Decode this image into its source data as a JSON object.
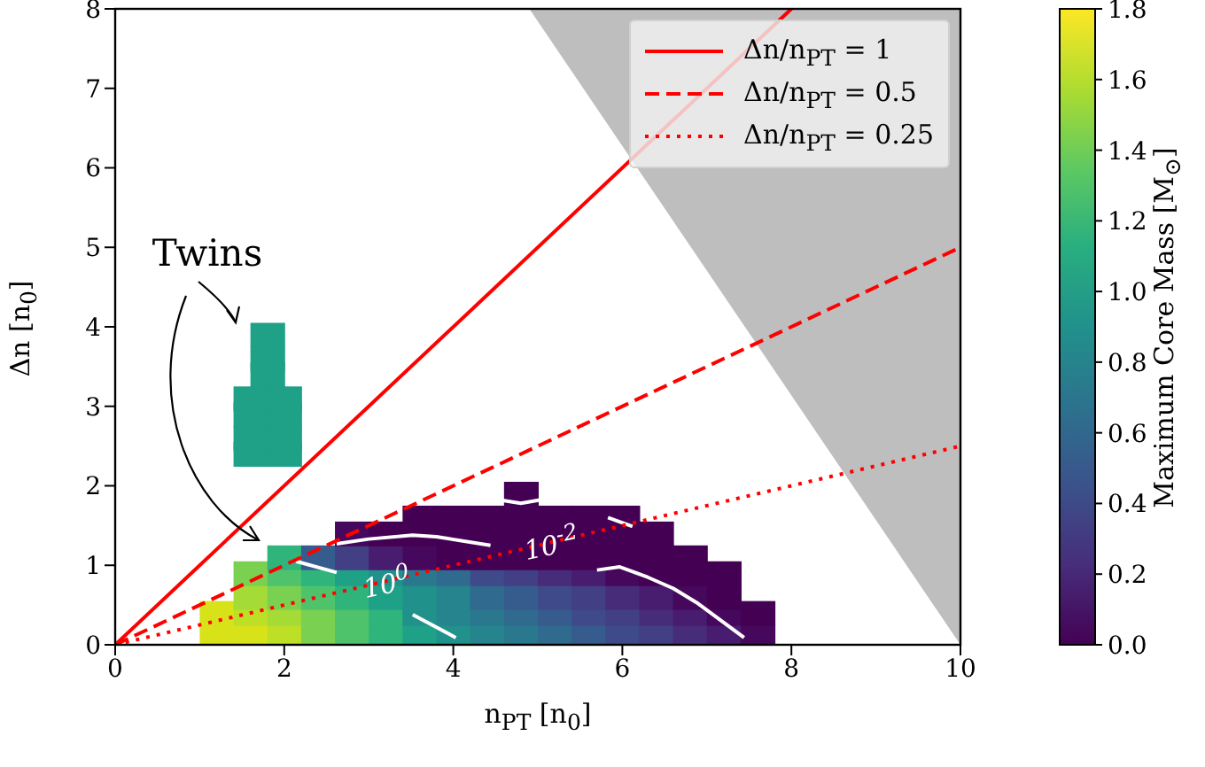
{
  "chart_data": {
    "type": "scatter",
    "xlabel": "n$_{PT}$ [n$_{0}$]",
    "ylabel": "Δn [n$_{0}$]",
    "clabel": "Maximum Core Mass [M$_{⊙}$]",
    "xlim": [
      0,
      10
    ],
    "ylim": [
      0,
      8
    ],
    "xticks": [
      0,
      2,
      4,
      6,
      8,
      10
    ],
    "yticks": [
      0,
      1,
      2,
      3,
      4,
      5,
      6,
      7,
      8
    ],
    "clim": [
      0,
      1.8
    ],
    "cticks": [
      {
        "value": 0,
        "label": "0.0"
      },
      {
        "value": 0.2,
        "label": "0.2"
      },
      {
        "value": 0.4,
        "label": "0.4"
      },
      {
        "value": 0.6,
        "label": "0.6"
      },
      {
        "value": 0.8,
        "label": "0.8"
      },
      {
        "value": 1,
        "label": "1.0"
      },
      {
        "value": 1.2,
        "label": "1.2"
      },
      {
        "value": 1.4,
        "label": "1.4"
      },
      {
        "value": 1.6,
        "label": "1.6"
      },
      {
        "value": 1.8,
        "label": "1.8"
      }
    ],
    "legend": "top right",
    "annotations": [
      "Twins",
      {
        "text": "10$^{-2}$",
        "x": 5.15,
        "y": 1.3
      },
      {
        "text": "10$^{0}$",
        "x": 3.2,
        "y": 0.8
      }
    ],
    "series": [
      {
        "type": "area",
        "color": "#bebebe",
        "x": [
          4.9,
          10
        ],
        "values": [
          8,
          0
        ]
      },
      {
        "marker": "square",
        "x": [
          1.2,
          1.6,
          2.0,
          2.4,
          2.8,
          3.2,
          3.6,
          4.0,
          4.4,
          4.8,
          5.2,
          5.6,
          6.0,
          6.4,
          6.8,
          7.2,
          7.6,
          1.2,
          1.6,
          2.0,
          2.4,
          2.8,
          3.2,
          3.6,
          4.0,
          4.4,
          4.8,
          5.2,
          5.6,
          6.0,
          6.4,
          6.8,
          7.2,
          7.6,
          1.6,
          2.0,
          2.4,
          2.8,
          3.2,
          3.6,
          4.0,
          4.4,
          4.8,
          5.2,
          5.6,
          6.0,
          6.4,
          6.8,
          7.2,
          1.6,
          2.0,
          2.4,
          2.8,
          3.2,
          3.6,
          4.0,
          4.4,
          4.8,
          5.2,
          5.6,
          6.0,
          6.4,
          6.8,
          7.2,
          2.0,
          2.4,
          2.8,
          3.2,
          3.6,
          4.0,
          4.4,
          4.8,
          5.2,
          5.6,
          6.0,
          6.4,
          6.8,
          2.8,
          3.2,
          3.6,
          4.0,
          4.4,
          4.8,
          5.2,
          5.6,
          6.0,
          6.4,
          3.6,
          4.0,
          4.4,
          4.8,
          5.2,
          5.6,
          6.0,
          4.8,
          1.6,
          2.0,
          1.6,
          2.0,
          1.6,
          2.0,
          1.6,
          2.0,
          1.8,
          1.8,
          1.8
        ],
        "values": [
          0.1,
          0.1,
          0.1,
          0.1,
          0.1,
          0.1,
          0.1,
          0.1,
          0.1,
          0.1,
          0.1,
          0.1,
          0.1,
          0.1,
          0.1,
          0.1,
          0.1,
          0.4,
          0.4,
          0.4,
          0.4,
          0.4,
          0.4,
          0.4,
          0.4,
          0.4,
          0.4,
          0.4,
          0.4,
          0.4,
          0.4,
          0.4,
          0.4,
          0.4,
          0.6,
          0.6,
          0.6,
          0.6,
          0.6,
          0.6,
          0.6,
          0.6,
          0.6,
          0.6,
          0.6,
          0.6,
          0.6,
          0.6,
          0.6,
          0.9,
          0.9,
          0.9,
          0.9,
          0.9,
          0.9,
          0.9,
          0.9,
          0.9,
          0.9,
          0.9,
          0.9,
          0.9,
          0.9,
          0.9,
          1.1,
          1.1,
          1.1,
          1.1,
          1.1,
          1.1,
          1.1,
          1.1,
          1.1,
          1.1,
          1.1,
          1.1,
          1.1,
          1.4,
          1.4,
          1.4,
          1.4,
          1.4,
          1.4,
          1.4,
          1.4,
          1.4,
          1.4,
          1.6,
          1.6,
          1.6,
          1.6,
          1.6,
          1.6,
          1.6,
          1.9,
          2.4,
          2.4,
          2.6,
          2.6,
          2.9,
          2.9,
          3.1,
          3.1,
          3.4,
          3.6,
          3.9
        ],
        "colors": [
          "#d8e219",
          "#d8e219",
          "#bddf26",
          "#7ad151",
          "#4ec36b",
          "#2fb47c",
          "#1fa187",
          "#21918c",
          "#25848e",
          "#2a788e",
          "#306a8e",
          "#365c8d",
          "#3e4a89",
          "#423f85",
          "#472c7a",
          "#481c6e",
          "#46085c",
          "#d8e219",
          "#bddf26",
          "#a5db36",
          "#7ad151",
          "#4ec36b",
          "#2fb47c",
          "#21918c",
          "#25848e",
          "#2a788e",
          "#306a8e",
          "#365c8d",
          "#3e4a89",
          "#423f85",
          "#472c7a",
          "#481c6e",
          "#46085c",
          "#440154",
          "#a5db36",
          "#7ad151",
          "#4ec36b",
          "#2fb47c",
          "#1fa187",
          "#21918c",
          "#25848e",
          "#306a8e",
          "#365c8d",
          "#3e4a89",
          "#423f85",
          "#472c7a",
          "#481c6e",
          "#46085c",
          "#440154",
          "#7ad151",
          "#4ec36b",
          "#2fb47c",
          "#1fa187",
          "#21918c",
          "#2a788e",
          "#306a8e",
          "#3e4a89",
          "#423f85",
          "#472c7a",
          "#481c6e",
          "#46085c",
          "#440154",
          "#440154",
          "#440154",
          "#2fb47c",
          "#365c8d",
          "#423f85",
          "#481c6e",
          "#46085c",
          "#440154",
          "#440154",
          "#440154",
          "#440154",
          "#440154",
          "#440154",
          "#440154",
          "#440154",
          "#46085c",
          "#440154",
          "#440154",
          "#440154",
          "#440154",
          "#440154",
          "#440154",
          "#440154",
          "#440154",
          "#440154",
          "#440154",
          "#440154",
          "#440154",
          "#440154",
          "#440154",
          "#440154",
          "#440154",
          "#440154",
          "#1fa187",
          "#1fa187",
          "#1fa187",
          "#1fa187",
          "#1fa187",
          "#1fa187",
          "#1fa187",
          "#1fa187",
          "#1fa187",
          "#1fa187",
          "#1fa187"
        ]
      },
      {
        "type": "line",
        "color": "#ffffff",
        "x": [
          2.62,
          3.0,
          3.52,
          3.8,
          4.44
        ],
        "values": [
          1.27,
          1.33,
          1.38,
          1.36,
          1.25
        ]
      },
      {
        "type": "line",
        "color": "#ffffff",
        "x": [
          4.5,
          4.8,
          5.07
        ],
        "values": [
          1.83,
          1.78,
          1.83
        ]
      },
      {
        "type": "line",
        "color": "#ffffff",
        "x": [
          5.83,
          6.12
        ],
        "values": [
          1.6,
          1.49
        ]
      },
      {
        "type": "line",
        "color": "#ffffff",
        "x": [
          5.7,
          5.97,
          6.3,
          6.6,
          6.88,
          7.44
        ],
        "values": [
          0.94,
          0.98,
          0.85,
          0.71,
          0.53,
          0.09
        ]
      },
      {
        "type": "line",
        "color": "#ffffff",
        "x": [
          2.14,
          2.62
        ],
        "values": [
          1.05,
          0.91
        ]
      },
      {
        "type": "line",
        "color": "#ffffff",
        "x": [
          3.52,
          4.03
        ],
        "values": [
          0.38,
          0.09
        ]
      },
      {
        "type": "line",
        "name": "Δn/n$_{PT}$ = 1",
        "color": "#ff0000",
        "line_style": "solid",
        "x": [
          0,
          8
        ],
        "values": [
          0,
          8
        ]
      },
      {
        "type": "line",
        "name": "Δn/n$_{PT}$ = 0.5",
        "color": "#ff0000",
        "line_style": "dashed",
        "x": [
          0,
          10
        ],
        "values": [
          0,
          5
        ]
      },
      {
        "type": "line",
        "name": "Δn/n$_{PT}$ = 0.25",
        "color": "#ff0000",
        "line_style": "dotted",
        "x": [
          0,
          10
        ],
        "values": [
          0,
          2.5
        ]
      }
    ]
  }
}
